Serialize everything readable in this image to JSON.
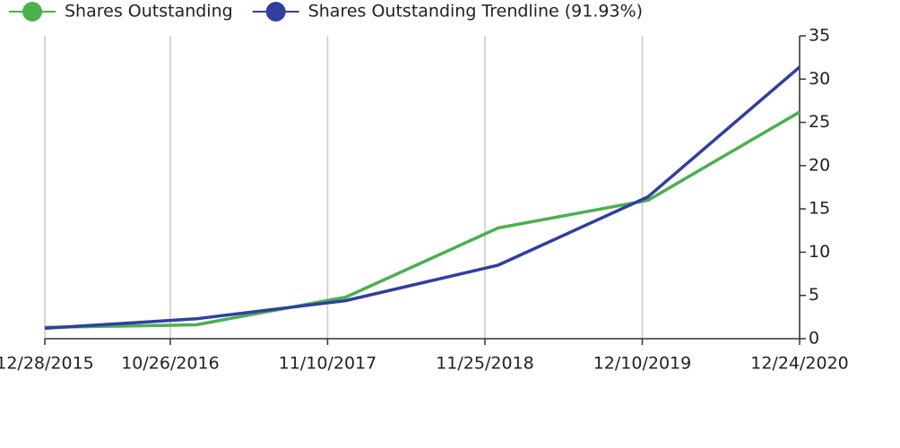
{
  "chart_data": {
    "type": "line",
    "x": [
      "12/28/2015",
      "12/28/2016",
      "12/24/2017",
      "12/27/2018",
      "12/24/2019",
      "12/24/2020"
    ],
    "series": [
      {
        "name": "Shares Outstanding",
        "color": "#4caf50",
        "values": [
          1.3,
          1.6,
          4.8,
          12.8,
          16.0,
          26.2
        ]
      },
      {
        "name": "Shares Outstanding Trendline (91.93%)",
        "color": "#303f9f",
        "values": [
          1.2,
          2.3,
          4.4,
          8.5,
          16.4,
          31.4
        ]
      }
    ],
    "xlim": [
      "12/28/2015",
      "12/24/2020"
    ],
    "xticks": [
      "12/28/2015",
      "10/26/2016",
      "11/10/2017",
      "11/25/2018",
      "12/10/2019",
      "12/24/2020"
    ],
    "ylim": [
      0,
      35
    ],
    "yticks": [
      0,
      5,
      10,
      15,
      20,
      25,
      30,
      35
    ],
    "grid": true,
    "legend": "top-left"
  }
}
